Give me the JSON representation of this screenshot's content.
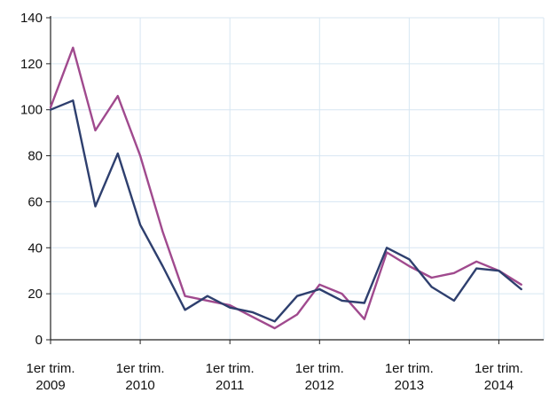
{
  "chart_data": {
    "type": "line",
    "title": "",
    "xlabel": "",
    "ylabel": "",
    "ylim": [
      0,
      140
    ],
    "yticks": [
      0,
      20,
      40,
      60,
      80,
      100,
      120,
      140
    ],
    "grid": true,
    "legend": "none",
    "x_tick_labels": [
      {
        "line1": "1er trim.",
        "line2": "2009",
        "index": 0
      },
      {
        "line1": "1er trim.",
        "line2": "2010",
        "index": 4
      },
      {
        "line1": "1er trim.",
        "line2": "2011",
        "index": 8
      },
      {
        "line1": "1er trim.",
        "line2": "2012",
        "index": 12
      },
      {
        "line1": "1er trim.",
        "line2": "2013",
        "index": 16
      },
      {
        "line1": "1er trim.",
        "line2": "2014",
        "index": 20
      }
    ],
    "series": [
      {
        "color": "#a04a8e",
        "values": [
          101,
          127,
          91,
          106,
          80,
          47,
          19,
          17,
          15,
          10,
          5,
          11,
          24,
          20,
          9,
          38,
          32,
          27,
          29,
          34,
          30,
          24
        ]
      },
      {
        "color": "#2e3f6e",
        "values": [
          100,
          104,
          58,
          81,
          50,
          32,
          13,
          19,
          14,
          12,
          8,
          19,
          22,
          17,
          16,
          40,
          35,
          23,
          17,
          31,
          30,
          22
        ]
      }
    ]
  }
}
